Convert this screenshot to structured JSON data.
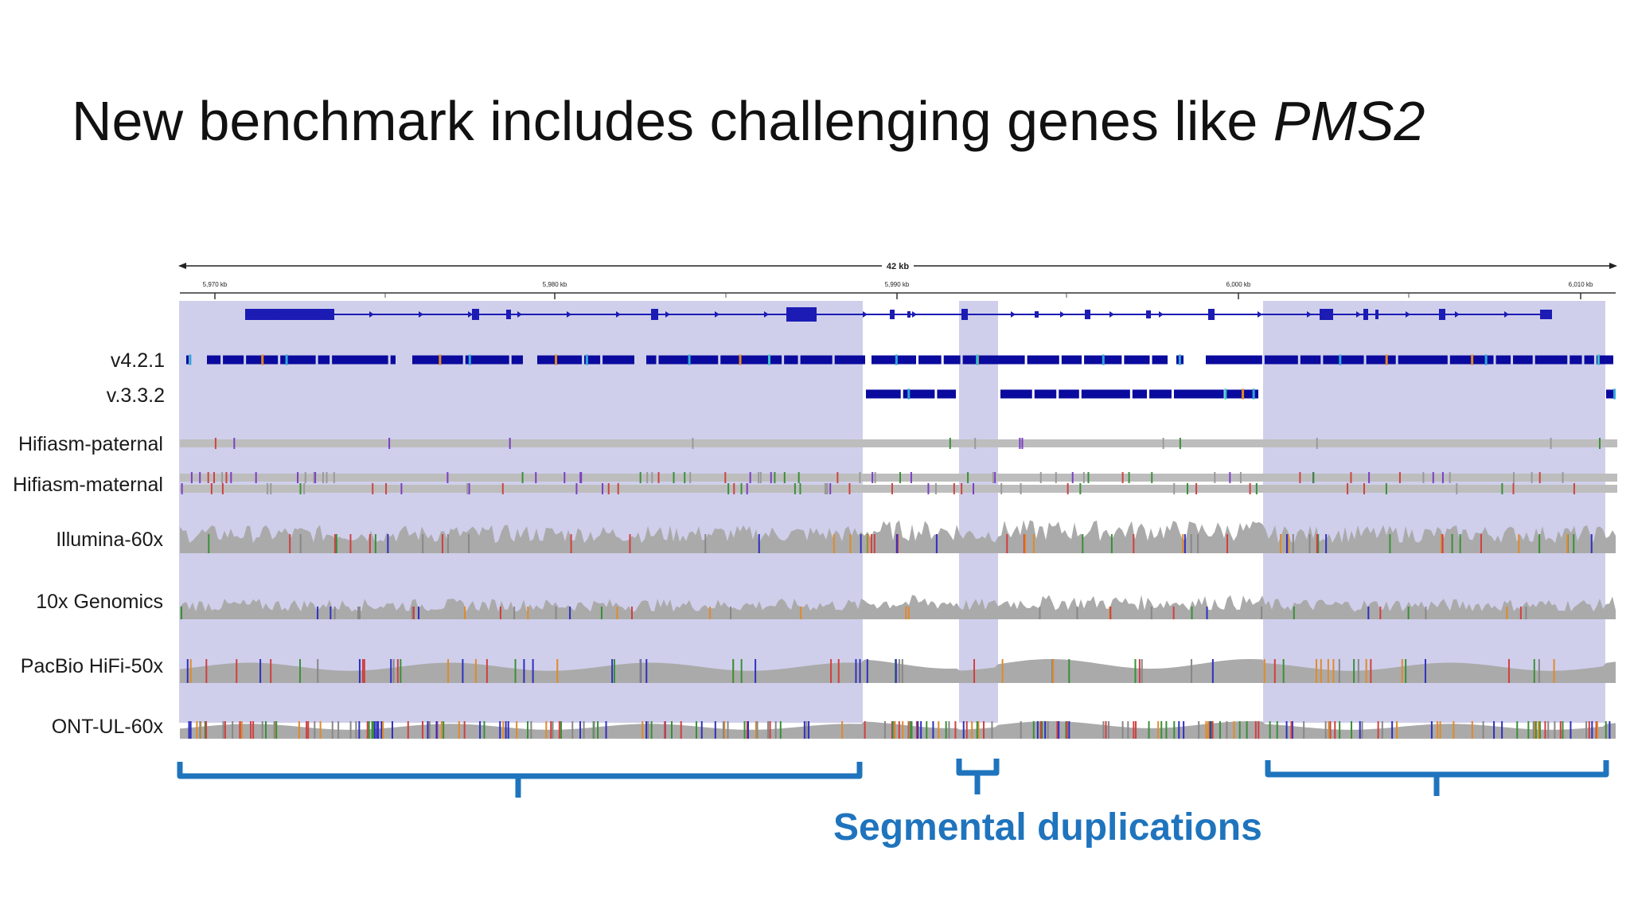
{
  "slide": {
    "title_prefix": "New benchmark includes challenging genes like ",
    "title_gene": "PMS2"
  },
  "ruler": {
    "span_label": "42 kb",
    "ticks": [
      "5,970 kb",
      "5,980 kb",
      "5,990 kb",
      "6,000 kb",
      "6,010 kb"
    ]
  },
  "tracks": [
    {
      "key": "v421",
      "label": "v4.2.1"
    },
    {
      "key": "v332",
      "label": "v.3.3.2"
    },
    {
      "key": "hifi_pat",
      "label": "Hifiasm-paternal"
    },
    {
      "key": "hifi_mat",
      "label": "Hifiasm-maternal"
    },
    {
      "key": "illumina",
      "label": "Illumina-60x"
    },
    {
      "key": "tenx",
      "label": "10x Genomics"
    },
    {
      "key": "pacbio",
      "label": "PacBio HiFi-50x"
    },
    {
      "key": "ont",
      "label": "ONT-UL-60x"
    }
  ],
  "annotation": {
    "label": "Segmental duplications"
  },
  "colors": {
    "segdup_shade": "#cfcfec",
    "benchmark_blue": "#0a0a9e",
    "gene_blue": "#1c1cb4",
    "coverage_gray": "#aaaaaa",
    "bracket_blue": "#1f74bd",
    "text_dark": "#111111"
  }
}
